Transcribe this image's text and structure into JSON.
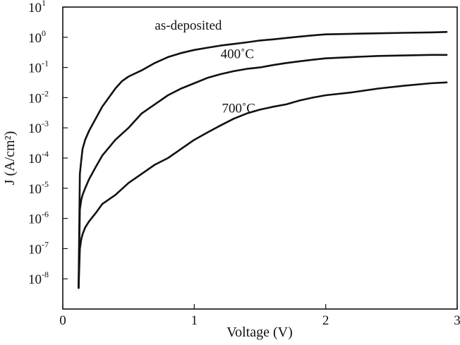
{
  "chart_data": {
    "type": "line",
    "xlabel": "Voltage (V)",
    "ylabel": "J (A/cm²)",
    "xlim": [
      0,
      3
    ],
    "ylim": [
      1e-09,
      10
    ],
    "yscale": "log",
    "grid": false,
    "x_ticks": [
      {
        "value": 0,
        "label": "0"
      },
      {
        "value": 1,
        "label": "1"
      },
      {
        "value": 2,
        "label": "2"
      },
      {
        "value": 3,
        "label": "3"
      }
    ],
    "y_ticks": [
      {
        "value": 10,
        "base": "10",
        "exp": "1"
      },
      {
        "value": 1,
        "base": "10",
        "exp": "0"
      },
      {
        "value": 0.1,
        "base": "10",
        "exp": "-1"
      },
      {
        "value": 0.01,
        "base": "10",
        "exp": "-2"
      },
      {
        "value": 0.001,
        "base": "10",
        "exp": "-3"
      },
      {
        "value": 0.0001,
        "base": "10",
        "exp": "-4"
      },
      {
        "value": 1e-05,
        "base": "10",
        "exp": "-5"
      },
      {
        "value": 1e-06,
        "base": "10",
        "exp": "-6"
      },
      {
        "value": 1e-07,
        "base": "10",
        "exp": "-7"
      },
      {
        "value": 1e-08,
        "base": "10",
        "exp": "-8"
      }
    ],
    "series": [
      {
        "name": "as-deposited",
        "label_at": [
          0.7,
          1.8
        ],
        "points": [
          [
            0.12,
            5e-09
          ],
          [
            0.13,
            3e-05
          ],
          [
            0.14,
            8e-05
          ],
          [
            0.15,
            0.0002
          ],
          [
            0.17,
            0.0004
          ],
          [
            0.2,
            0.0008
          ],
          [
            0.25,
            0.002
          ],
          [
            0.3,
            0.005
          ],
          [
            0.35,
            0.01
          ],
          [
            0.4,
            0.02
          ],
          [
            0.45,
            0.035
          ],
          [
            0.5,
            0.05
          ],
          [
            0.6,
            0.08
          ],
          [
            0.7,
            0.14
          ],
          [
            0.8,
            0.22
          ],
          [
            0.9,
            0.3
          ],
          [
            1.0,
            0.38
          ],
          [
            1.1,
            0.45
          ],
          [
            1.2,
            0.53
          ],
          [
            1.3,
            0.6
          ],
          [
            1.4,
            0.68
          ],
          [
            1.5,
            0.78
          ],
          [
            1.6,
            0.85
          ],
          [
            1.7,
            0.95
          ],
          [
            1.8,
            1.05
          ],
          [
            1.9,
            1.15
          ],
          [
            2.0,
            1.25
          ],
          [
            2.2,
            1.3
          ],
          [
            2.4,
            1.35
          ],
          [
            2.6,
            1.4
          ],
          [
            2.8,
            1.45
          ],
          [
            2.92,
            1.5
          ]
        ]
      },
      {
        "name": "400˚C",
        "label_at": [
          1.2,
          0.2
        ],
        "points": [
          [
            0.12,
            5e-09
          ],
          [
            0.13,
            2e-06
          ],
          [
            0.14,
            4e-06
          ],
          [
            0.15,
            6e-06
          ],
          [
            0.17,
            1e-05
          ],
          [
            0.2,
            2e-05
          ],
          [
            0.25,
            5e-05
          ],
          [
            0.3,
            0.00012
          ],
          [
            0.4,
            0.0004
          ],
          [
            0.5,
            0.001
          ],
          [
            0.6,
            0.003
          ],
          [
            0.7,
            0.006
          ],
          [
            0.8,
            0.012
          ],
          [
            0.9,
            0.02
          ],
          [
            1.0,
            0.03
          ],
          [
            1.1,
            0.045
          ],
          [
            1.2,
            0.06
          ],
          [
            1.3,
            0.075
          ],
          [
            1.4,
            0.09
          ],
          [
            1.5,
            0.1
          ],
          [
            1.6,
            0.12
          ],
          [
            1.7,
            0.14
          ],
          [
            1.8,
            0.16
          ],
          [
            1.9,
            0.18
          ],
          [
            2.0,
            0.2
          ],
          [
            2.2,
            0.22
          ],
          [
            2.4,
            0.24
          ],
          [
            2.6,
            0.25
          ],
          [
            2.8,
            0.26
          ],
          [
            2.92,
            0.26
          ]
        ]
      },
      {
        "name": "700˚C",
        "label_at": [
          1.21,
          0.0032
        ],
        "points": [
          [
            0.12,
            5e-09
          ],
          [
            0.13,
            1e-07
          ],
          [
            0.14,
            2e-07
          ],
          [
            0.15,
            3e-07
          ],
          [
            0.17,
            5e-07
          ],
          [
            0.2,
            8e-07
          ],
          [
            0.25,
            1.5e-06
          ],
          [
            0.3,
            3e-06
          ],
          [
            0.4,
            6e-06
          ],
          [
            0.5,
            1.5e-05
          ],
          [
            0.6,
            3e-05
          ],
          [
            0.7,
            6e-05
          ],
          [
            0.8,
            0.0001
          ],
          [
            0.9,
            0.0002
          ],
          [
            1.0,
            0.0004
          ],
          [
            1.1,
            0.0007
          ],
          [
            1.2,
            0.0012
          ],
          [
            1.3,
            0.002
          ],
          [
            1.4,
            0.003
          ],
          [
            1.5,
            0.004
          ],
          [
            1.6,
            0.005
          ],
          [
            1.7,
            0.006
          ],
          [
            1.8,
            0.008
          ],
          [
            1.9,
            0.01
          ],
          [
            2.0,
            0.012
          ],
          [
            2.2,
            0.015
          ],
          [
            2.4,
            0.02
          ],
          [
            2.6,
            0.025
          ],
          [
            2.8,
            0.03
          ],
          [
            2.92,
            0.032
          ]
        ]
      }
    ]
  }
}
